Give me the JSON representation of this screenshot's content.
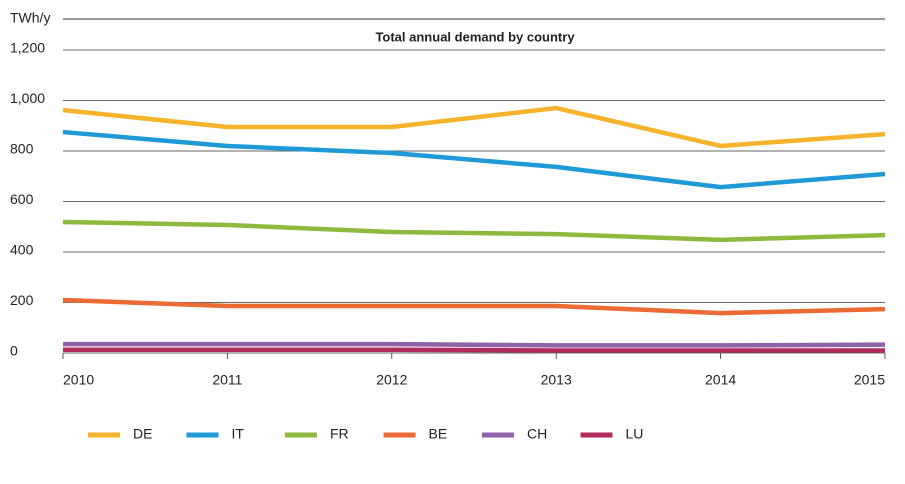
{
  "chart_data": {
    "type": "line",
    "title": "Total annual demand by country",
    "y_label": "TWh/y",
    "categories": [
      "2010",
      "2011",
      "2012",
      "2013",
      "2014",
      "2015"
    ],
    "series": [
      {
        "name": "DE",
        "color": "#f7b32b",
        "values": [
          962,
          895,
          895,
          970,
          820,
          867
        ]
      },
      {
        "name": "IT",
        "color": "#1f9ad6",
        "values": [
          875,
          820,
          792,
          737,
          657,
          709
        ]
      },
      {
        "name": "FR",
        "color": "#8dba3e",
        "values": [
          519,
          507,
          479,
          471,
          448,
          467
        ]
      },
      {
        "name": "BE",
        "color": "#ec6a33",
        "values": [
          210,
          186,
          186,
          186,
          158,
          174
        ]
      },
      {
        "name": "CH",
        "color": "#8e62a8",
        "values": [
          35,
          35,
          35,
          30,
          30,
          33
        ]
      },
      {
        "name": "LU",
        "color": "#b02a5c",
        "values": [
          13,
          13,
          13,
          10,
          10,
          10
        ]
      }
    ],
    "ylim": [
      0,
      1200
    ],
    "yticks": [
      0,
      200,
      400,
      600,
      800,
      {
        "value": 1000,
        "label": "1,000"
      },
      {
        "value": 1200,
        "label": "1,200"
      }
    ],
    "grid": true,
    "legend": "bottom"
  }
}
